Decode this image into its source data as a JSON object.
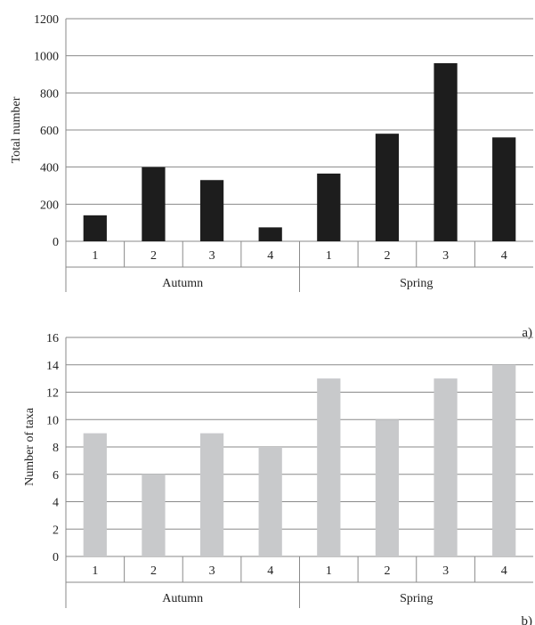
{
  "chart_data": [
    {
      "type": "bar",
      "panel_label": "a)",
      "ylabel": "Total number",
      "ylim": [
        0,
        1200
      ],
      "yticks": [
        0,
        200,
        400,
        600,
        800,
        1000,
        1200
      ],
      "grid": true,
      "categories": [
        "1",
        "2",
        "3",
        "4",
        "1",
        "2",
        "3",
        "4"
      ],
      "groups": [
        {
          "label": "Autumn",
          "span": 4
        },
        {
          "label": "Spring",
          "span": 4
        }
      ],
      "values": [
        140,
        400,
        330,
        75,
        365,
        580,
        960,
        560
      ],
      "color": "#1d1d1d"
    },
    {
      "type": "bar",
      "panel_label": "b)",
      "ylabel": "Number of taxa",
      "ylim": [
        0,
        16
      ],
      "yticks": [
        0,
        2,
        4,
        6,
        8,
        10,
        12,
        14,
        16
      ],
      "grid": true,
      "categories": [
        "1",
        "2",
        "3",
        "4",
        "1",
        "2",
        "3",
        "4"
      ],
      "groups": [
        {
          "label": "Autumn",
          "span": 4
        },
        {
          "label": "Spring",
          "span": 4
        }
      ],
      "values": [
        9,
        6,
        9,
        8,
        13,
        10,
        13,
        14
      ],
      "color": "#c8c9cb"
    }
  ]
}
